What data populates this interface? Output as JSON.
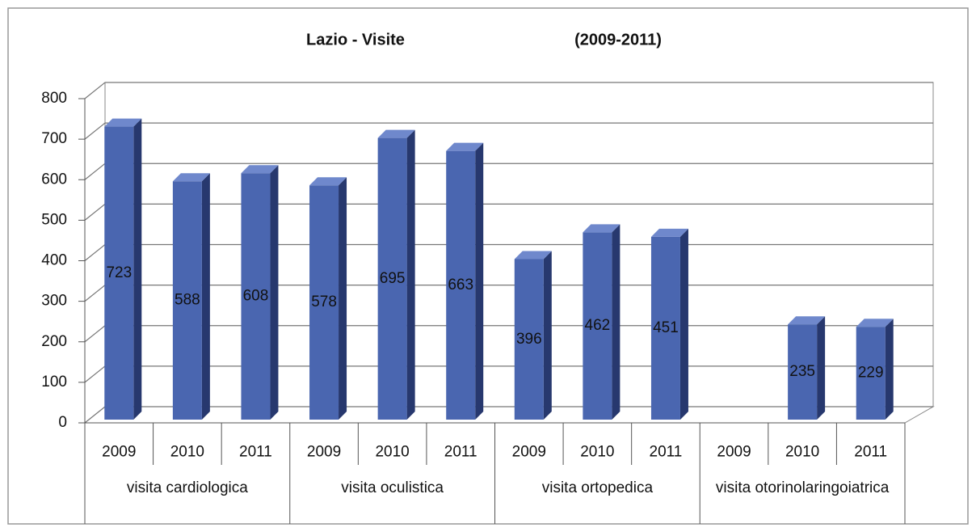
{
  "chart_data": {
    "type": "bar3d",
    "title": "Lazio - Visite",
    "subtitle": "(2009-2011)",
    "categories": [
      "2009",
      "2010",
      "2011",
      "2009",
      "2010",
      "2011",
      "2009",
      "2010",
      "2011",
      "2009",
      "2010",
      "2011"
    ],
    "groups": [
      "visita cardiologica",
      "visita oculistica",
      "visita ortopedica",
      "visita otorinolaringoiatrica"
    ],
    "values": [
      723,
      588,
      608,
      578,
      695,
      663,
      396,
      462,
      451,
      null,
      235,
      229
    ],
    "color": "#4a66b0",
    "ylim": [
      0,
      800
    ],
    "yticks": [
      0,
      100,
      200,
      300,
      400,
      500,
      600,
      700,
      800
    ],
    "grid": true
  }
}
